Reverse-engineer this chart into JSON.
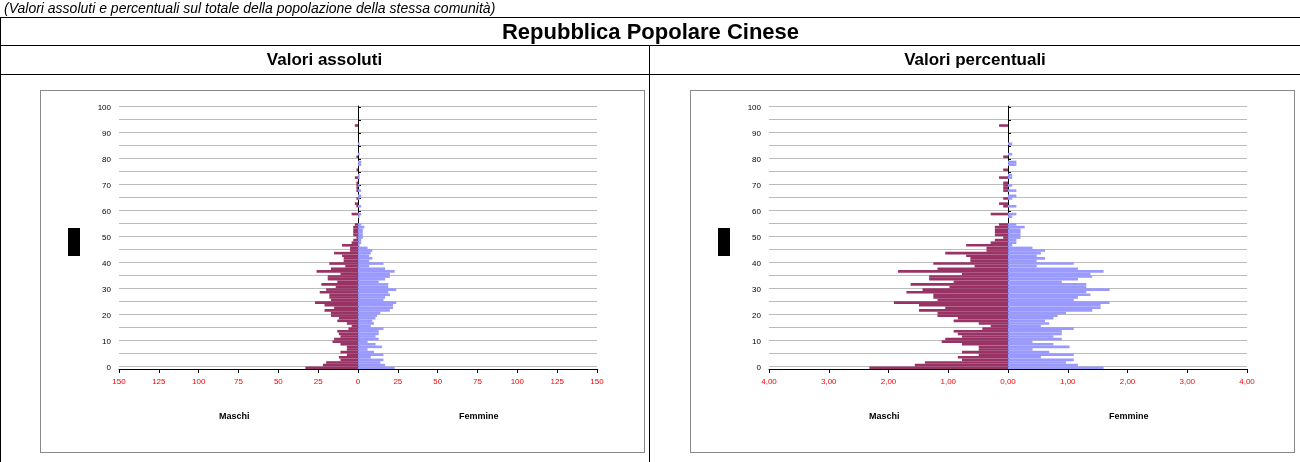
{
  "chart_data": [
    {
      "type": "bar",
      "orientation": "horizontal",
      "title": "Valori assoluti",
      "annotations": [
        "(Valori assoluti e percentuali sul totale della popolazione della stessa comunità)",
        "Repubblica Popolare Cinese",
        "Maschi",
        "Femmine"
      ],
      "stacked": true,
      "categories": [
        "100",
        null,
        null,
        null,
        null,
        null,
        null,
        null,
        null,
        null,
        "90",
        null,
        null,
        null,
        null,
        null,
        null,
        null,
        null,
        null,
        "80",
        null,
        null,
        null,
        null,
        null,
        null,
        null,
        null,
        null,
        "70",
        null,
        null,
        null,
        null,
        null,
        null,
        null,
        null,
        null,
        "60",
        null,
        null,
        null,
        null,
        null,
        null,
        null,
        null,
        null,
        "50",
        null,
        null,
        null,
        null,
        null,
        null,
        null,
        null,
        null,
        "40",
        null,
        null,
        null,
        null,
        null,
        null,
        null,
        null,
        null,
        "30",
        null,
        null,
        null,
        null,
        null,
        null,
        null,
        null,
        null,
        "20",
        null,
        null,
        null,
        null,
        null,
        null,
        null,
        null,
        null,
        "10",
        null,
        null,
        null,
        null,
        null,
        null,
        null,
        null,
        null,
        "0"
      ],
      "xlim": [
        -150,
        150
      ],
      "xticks": [
        {
          "value": -150,
          "label": "150"
        },
        {
          "value": -125,
          "label": "125"
        },
        {
          "value": -100,
          "label": "100"
        },
        {
          "value": -75,
          "label": "75"
        },
        {
          "value": -50,
          "label": "50"
        },
        {
          "value": -25,
          "label": "25"
        },
        0,
        25,
        50,
        75,
        100,
        125,
        150
      ],
      "grid": "y",
      "series": [
        {
          "color": "#993366",
          "values": [
            0,
            0,
            0,
            0,
            0,
            0,
            0,
            -2,
            0,
            0,
            0,
            0,
            0,
            0,
            0,
            0,
            0,
            0,
            0,
            -1,
            0,
            0,
            0,
            0,
            -1,
            0,
            0,
            -2,
            0,
            -1,
            -1,
            -1,
            -1,
            0,
            0,
            -1,
            0,
            -2,
            -1,
            0,
            0,
            -4,
            0,
            0,
            0,
            -2,
            -3,
            -3,
            -3,
            -3,
            -1,
            -3,
            -4,
            -10,
            -5,
            -5,
            -15,
            -10,
            -9,
            -9,
            -18,
            -8,
            -17,
            -26,
            -11,
            -19,
            -19,
            -13,
            -23,
            -14,
            -20,
            -24,
            -18,
            -18,
            -17,
            -27,
            -21,
            -15,
            -21,
            -17,
            -17,
            -12,
            -13,
            -7,
            -4,
            -6,
            -13,
            -12,
            -11,
            -15,
            -16,
            -11,
            -7,
            -7,
            -11,
            -7,
            -12,
            -11,
            -20,
            -22,
            -33
          ]
        },
        {
          "color": "#9999ff",
          "values": [
            0,
            0,
            0,
            0,
            0,
            0,
            0,
            0,
            0,
            0,
            0,
            0,
            0,
            0,
            1,
            0,
            0,
            0,
            1,
            0,
            0,
            2,
            2,
            0,
            0,
            0,
            1,
            1,
            0,
            0,
            1,
            0,
            2,
            0,
            2,
            1,
            0,
            0,
            2,
            0,
            0,
            2,
            1,
            0,
            0,
            2,
            4,
            3,
            3,
            3,
            3,
            2,
            2,
            1,
            6,
            9,
            8,
            7,
            9,
            7,
            16,
            7,
            17,
            23,
            20,
            20,
            17,
            13,
            19,
            19,
            24,
            19,
            20,
            17,
            16,
            24,
            22,
            22,
            20,
            14,
            12,
            11,
            9,
            10,
            8,
            16,
            13,
            13,
            11,
            13,
            6,
            11,
            15,
            6,
            10,
            16,
            8,
            16,
            14,
            17,
            23
          ]
        }
      ]
    },
    {
      "type": "bar",
      "orientation": "horizontal",
      "title": "Valori percentuali",
      "annotations": [
        "Maschi",
        "Femmine"
      ],
      "stacked": true,
      "categories": [
        "100",
        null,
        null,
        null,
        null,
        null,
        null,
        null,
        null,
        null,
        "90",
        null,
        null,
        null,
        null,
        null,
        null,
        null,
        null,
        null,
        "80",
        null,
        null,
        null,
        null,
        null,
        null,
        null,
        null,
        null,
        "70",
        null,
        null,
        null,
        null,
        null,
        null,
        null,
        null,
        null,
        "60",
        null,
        null,
        null,
        null,
        null,
        null,
        null,
        null,
        null,
        "50",
        null,
        null,
        null,
        null,
        null,
        null,
        null,
        null,
        null,
        "40",
        null,
        null,
        null,
        null,
        null,
        null,
        null,
        null,
        null,
        "30",
        null,
        null,
        null,
        null,
        null,
        null,
        null,
        null,
        null,
        "20",
        null,
        null,
        null,
        null,
        null,
        null,
        null,
        null,
        null,
        "10",
        null,
        null,
        null,
        null,
        null,
        null,
        null,
        null,
        null,
        "0"
      ],
      "xlim": [
        -4,
        4
      ],
      "xticks": [
        {
          "value": -4,
          "label": "4,00"
        },
        {
          "value": -3,
          "label": "3,00"
        },
        {
          "value": -2,
          "label": "2,00"
        },
        {
          "value": -1,
          "label": "1,00"
        },
        {
          "value": 0,
          "label": "0,00"
        },
        {
          "value": 1,
          "label": "1,00"
        },
        {
          "value": 2,
          "label": "2,00"
        },
        {
          "value": 3,
          "label": "3,00"
        },
        {
          "value": 4,
          "label": "4,00"
        }
      ],
      "grid": "y",
      "series": [
        {
          "color": "#993366",
          "values": [
            0,
            0,
            0,
            0,
            0,
            0,
            0,
            -0.15,
            0,
            0,
            0,
            0,
            0,
            0,
            0,
            0,
            0,
            0,
            0,
            -0.08,
            0,
            0,
            0,
            0,
            -0.08,
            0,
            0,
            -0.15,
            0,
            -0.08,
            -0.08,
            -0.08,
            -0.08,
            0,
            0,
            -0.08,
            0,
            -0.15,
            -0.08,
            0,
            0,
            -0.29,
            0,
            0,
            0,
            -0.15,
            -0.22,
            -0.22,
            -0.22,
            -0.22,
            -0.08,
            -0.22,
            -0.29,
            -0.7,
            -0.36,
            -0.36,
            -1.05,
            -0.7,
            -0.63,
            -0.63,
            -1.25,
            -0.56,
            -1.18,
            -1.84,
            -0.77,
            -1.32,
            -1.32,
            -0.91,
            -1.63,
            -0.98,
            -1.43,
            -1.7,
            -1.25,
            -1.25,
            -1.18,
            -1.91,
            -1.49,
            -1.05,
            -1.49,
            -1.18,
            -1.18,
            -0.84,
            -0.91,
            -0.49,
            -0.29,
            -0.43,
            -0.91,
            -0.84,
            -0.77,
            -1.05,
            -1.11,
            -0.77,
            -0.49,
            -0.49,
            -0.77,
            -0.49,
            -0.84,
            -0.77,
            -1.39,
            -1.56,
            -2.32
          ]
        },
        {
          "color": "#9999ff",
          "values": [
            0,
            0,
            0,
            0,
            0,
            0,
            0,
            0,
            0,
            0,
            0,
            0,
            0,
            0,
            0.07,
            0,
            0,
            0,
            0.07,
            0,
            0,
            0.14,
            0.14,
            0,
            0,
            0,
            0.07,
            0.07,
            0,
            0,
            0.07,
            0,
            0.14,
            0,
            0.14,
            0.07,
            0,
            0,
            0.14,
            0,
            0,
            0.14,
            0.07,
            0,
            0,
            0.14,
            0.28,
            0.21,
            0.21,
            0.21,
            0.21,
            0.14,
            0.14,
            0.07,
            0.41,
            0.62,
            0.55,
            0.48,
            0.62,
            0.48,
            1.1,
            0.48,
            1.17,
            1.6,
            1.38,
            1.41,
            1.17,
            0.9,
            1.31,
            1.31,
            1.7,
            1.31,
            1.38,
            1.17,
            1.1,
            1.7,
            1.55,
            1.55,
            1.41,
            0.97,
            0.83,
            0.76,
            0.62,
            0.69,
            0.55,
            1.1,
            0.9,
            0.9,
            0.76,
            0.9,
            0.41,
            0.76,
            1.03,
            0.41,
            0.69,
            1.1,
            0.55,
            1.1,
            0.97,
            1.17,
            1.6
          ]
        }
      ]
    }
  ]
}
